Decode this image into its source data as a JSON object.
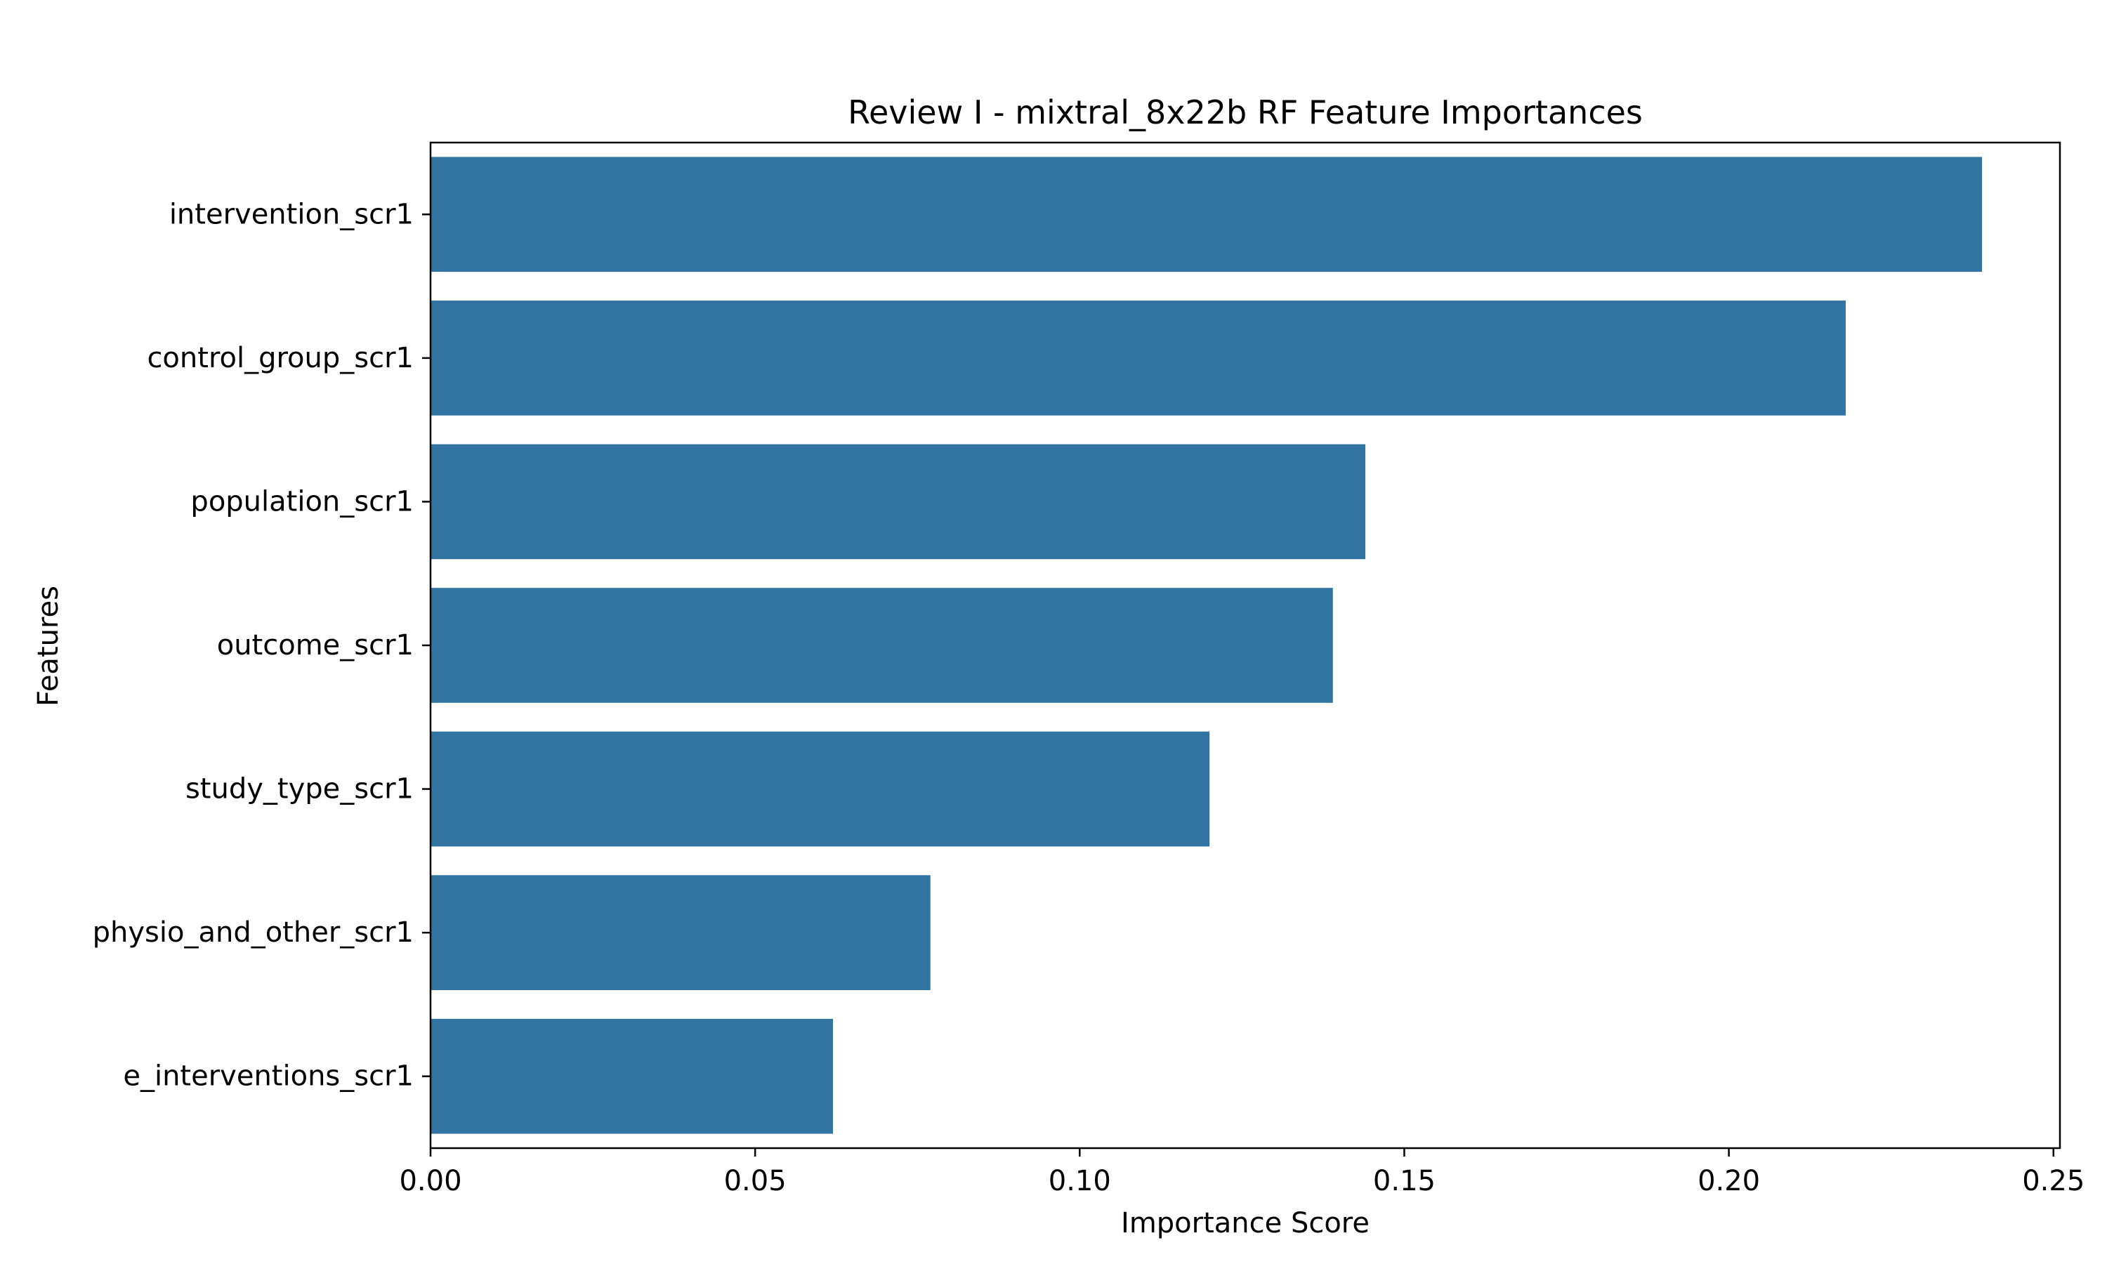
{
  "chart_data": {
    "type": "bar",
    "orientation": "horizontal",
    "title": "Review I - mixtral_8x22b RF Feature Importances",
    "xlabel": "Importance Score",
    "ylabel": "Features",
    "categories": [
      "intervention_scr1",
      "control_group_scr1",
      "population_scr1",
      "outcome_scr1",
      "study_type_scr1",
      "physio_and_other_scr1",
      "e_interventions_scr1"
    ],
    "values": [
      0.239,
      0.218,
      0.144,
      0.139,
      0.12,
      0.077,
      0.062
    ],
    "xlim": [
      0,
      0.251
    ],
    "xticks": [
      0.0,
      0.05,
      0.1,
      0.15,
      0.2,
      0.25
    ],
    "xtick_labels": [
      "0.00",
      "0.05",
      "0.10",
      "0.15",
      "0.20",
      "0.25"
    ],
    "bar_color": "#3274a1",
    "grid": false,
    "legend": "none"
  }
}
